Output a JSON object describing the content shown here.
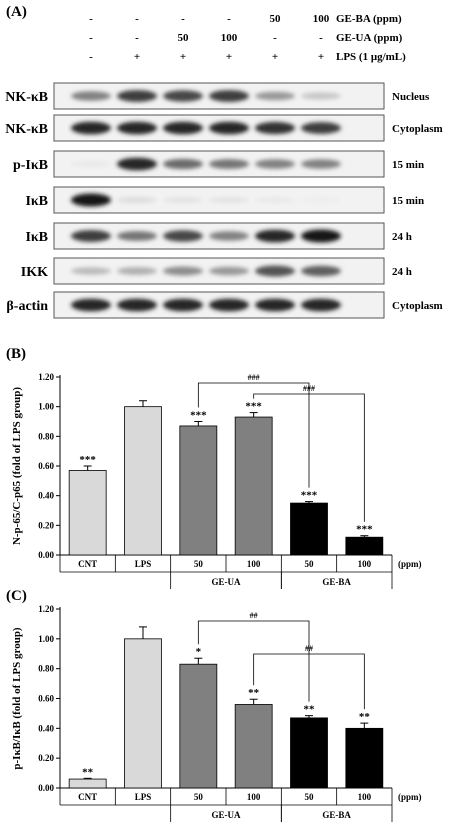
{
  "panel_a": {
    "label": "(A)",
    "conditions": [
      {
        "name": "GE-BA (ppm)",
        "values": [
          "-",
          "-",
          "-",
          "-",
          "50",
          "100"
        ]
      },
      {
        "name": "GE-UA (ppm)",
        "values": [
          "-",
          "-",
          "50",
          "100",
          "-",
          "-"
        ]
      },
      {
        "name": "LPS (1 μg/mL)",
        "values": [
          "-",
          "+",
          "+",
          "+",
          "+",
          "+"
        ]
      }
    ],
    "blots": [
      {
        "protein": "NK-κB",
        "note": "Nucleus",
        "intensities": [
          0.55,
          0.85,
          0.8,
          0.85,
          0.45,
          0.25
        ]
      },
      {
        "protein": "NK-κB",
        "note": "Cytoplasm",
        "intensities": [
          0.95,
          0.95,
          0.95,
          0.95,
          0.9,
          0.85
        ]
      },
      {
        "protein": "p-IκB",
        "note": "15 min",
        "intensities": [
          0.1,
          0.95,
          0.65,
          0.6,
          0.55,
          0.55
        ]
      },
      {
        "protein": "IκB",
        "note": "15 min",
        "intensities": [
          1.0,
          0.15,
          0.12,
          0.12,
          0.1,
          0.08
        ]
      },
      {
        "protein": "IκB",
        "note": "24 h",
        "intensities": [
          0.85,
          0.6,
          0.8,
          0.55,
          0.95,
          1.0
        ]
      },
      {
        "protein": "IKK",
        "note": "24 h",
        "intensities": [
          0.3,
          0.35,
          0.5,
          0.45,
          0.75,
          0.7
        ]
      },
      {
        "protein": "β-actin",
        "note": "Cytoplasm",
        "intensities": [
          0.95,
          0.95,
          0.95,
          0.95,
          0.95,
          0.95
        ]
      }
    ]
  },
  "chart_data": [
    {
      "panel": "(B)",
      "type": "bar",
      "ylabel": "N-p-65/C-p65 (fold of LPS group)",
      "ylim": [
        0,
        1.2
      ],
      "yticks": [
        "0.00",
        "0.20",
        "0.40",
        "0.60",
        "0.80",
        "1.00",
        "1.20"
      ],
      "categories": [
        "CNT",
        "LPS",
        "50",
        "100",
        "50",
        "100"
      ],
      "groups": [
        "GE-UA",
        "GE-BA"
      ],
      "unit": "(ppm)",
      "values": [
        0.57,
        1.0,
        0.87,
        0.93,
        0.35,
        0.12
      ],
      "errors": [
        0.03,
        0.04,
        0.03,
        0.03,
        0.01,
        0.01
      ],
      "significance": [
        "***",
        "",
        "***",
        "***",
        "***",
        "***"
      ],
      "comparisons": [
        {
          "from": 2,
          "to": 4,
          "label": "###"
        },
        {
          "from": 3,
          "to": 5,
          "label": "###"
        }
      ],
      "colors": [
        "#d9d9d9",
        "#d9d9d9",
        "#808080",
        "#808080",
        "#000000",
        "#000000"
      ]
    },
    {
      "panel": "(C)",
      "type": "bar",
      "ylabel": "p-IκB/IκB (fold of LPS group)",
      "ylim": [
        0,
        1.2
      ],
      "yticks": [
        "0.00",
        "0.20",
        "0.40",
        "0.60",
        "0.80",
        "1.00",
        "1.20"
      ],
      "categories": [
        "CNT",
        "LPS",
        "50",
        "100",
        "50",
        "100"
      ],
      "groups": [
        "GE-UA",
        "GE-BA"
      ],
      "unit": "(ppm)",
      "values": [
        0.06,
        1.0,
        0.83,
        0.56,
        0.47,
        0.4
      ],
      "errors": [
        0.005,
        0.08,
        0.04,
        0.035,
        0.015,
        0.035
      ],
      "significance": [
        "**",
        "",
        "*",
        "**",
        "**",
        "**"
      ],
      "comparisons": [
        {
          "from": 2,
          "to": 4,
          "label": "##"
        },
        {
          "from": 3,
          "to": 5,
          "label": "##"
        }
      ],
      "colors": [
        "#d9d9d9",
        "#d9d9d9",
        "#808080",
        "#808080",
        "#000000",
        "#000000"
      ]
    }
  ]
}
